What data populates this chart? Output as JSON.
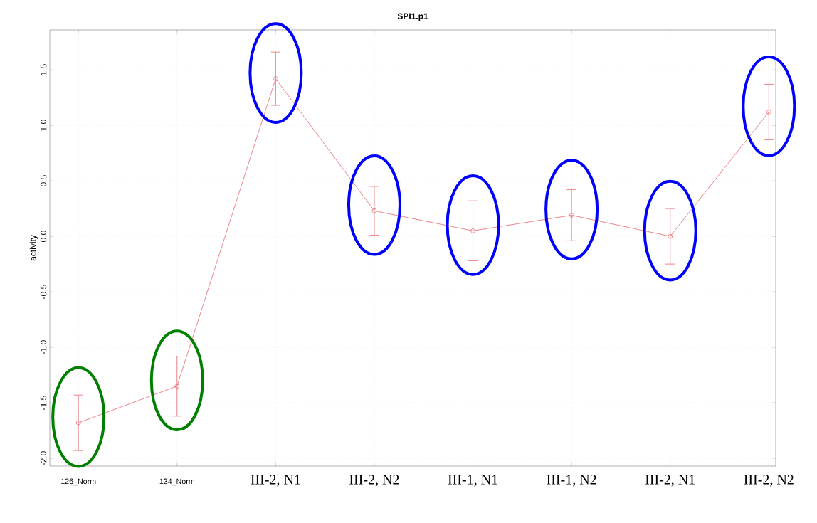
{
  "chart_data": {
    "type": "line",
    "title": "SPI1.p1",
    "ylabel": "activity",
    "categories": [
      "126_Norm",
      "134_Norm",
      "III-2, N1",
      "III-2, N2",
      "III-1, N1",
      "III-1, N2",
      "III-2, N1",
      "III-2, N2"
    ],
    "series": [
      {
        "color": "#e8666e",
        "values": [
          -1.68,
          -1.35,
          1.42,
          0.23,
          0.05,
          0.19,
          0.0,
          1.12
        ],
        "errors": [
          0.25,
          0.27,
          0.24,
          0.22,
          0.27,
          0.23,
          0.25,
          0.25
        ]
      }
    ],
    "ylim": [
      -2.07,
      1.86
    ],
    "yticks": [
      {
        "value": -2.0,
        "label": "-2.0"
      },
      {
        "value": -1.5,
        "label": "-1.5"
      },
      {
        "value": -1.0,
        "label": "-1.0"
      },
      {
        "value": -0.5,
        "label": "-0.5"
      },
      {
        "value": 0.0,
        "label": "0.0"
      },
      {
        "value": 0.5,
        "label": "0.5"
      },
      {
        "value": 1.0,
        "label": "1.0"
      },
      {
        "value": 1.5,
        "label": "1.5"
      }
    ],
    "grid": true,
    "marker": "circle",
    "line_style": "solid"
  }
}
